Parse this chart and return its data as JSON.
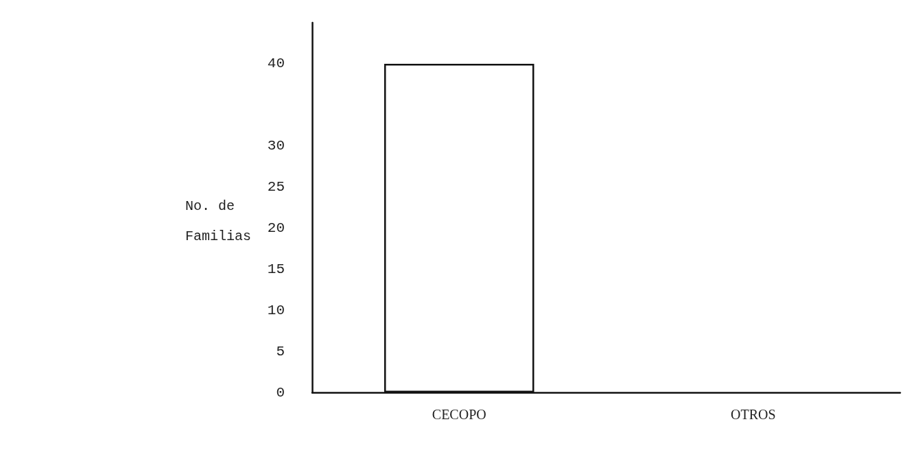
{
  "chart_data": {
    "type": "bar",
    "ylabel": "No. de Familias",
    "categories": [
      "CECOPO",
      "OTROS"
    ],
    "values": [
      40,
      0
    ],
    "color": "#ffffff",
    "ylim": [
      0,
      45
    ],
    "yticks": [
      0,
      5,
      10,
      15,
      20,
      25,
      30,
      40
    ],
    "grid": false
  }
}
